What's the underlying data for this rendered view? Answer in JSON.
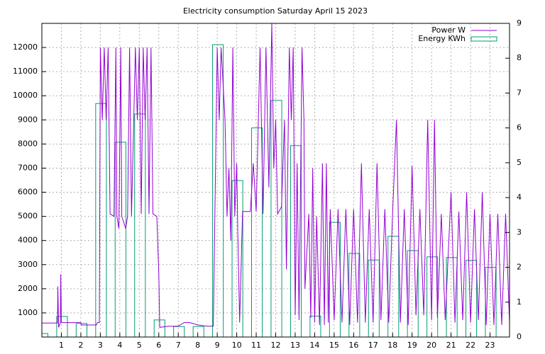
{
  "chart_data": {
    "type": "line",
    "title": "Electricity consumption Saturday April 15 2023",
    "xlim": [
      0,
      24
    ],
    "xticks": [
      1,
      2,
      3,
      4,
      5,
      6,
      7,
      8,
      9,
      10,
      11,
      12,
      13,
      14,
      15,
      16,
      17,
      18,
      19,
      20,
      21,
      22,
      23
    ],
    "ylim": [
      0,
      13000
    ],
    "yticks": [
      1000,
      2000,
      3000,
      4000,
      5000,
      6000,
      7000,
      8000,
      9000,
      10000,
      11000,
      12000
    ],
    "y2lim": [
      0,
      9
    ],
    "y2ticks": [
      0,
      1,
      2,
      3,
      4,
      5,
      6,
      7,
      8,
      9
    ],
    "grid": true,
    "legend": "top-right",
    "series": [
      {
        "name": "Power W",
        "type": "line",
        "color": "#9400d3",
        "x": [
          0,
          0.8,
          0.82,
          0.86,
          0.95,
          0.97,
          1.0,
          2.0,
          2.02,
          2.8,
          2.85,
          2.95,
          3.0,
          3.1,
          3.2,
          3.3,
          3.4,
          3.5,
          3.7,
          3.8,
          3.85,
          3.95,
          4.05,
          4.1,
          4.3,
          4.4,
          4.5,
          4.6,
          4.8,
          4.9,
          5.0,
          5.1,
          5.2,
          5.3,
          5.4,
          5.5,
          5.6,
          5.7,
          5.9,
          6.0,
          6.05,
          6.5,
          7.0,
          7.3,
          7.6,
          8.0,
          8.5,
          8.8,
          9.0,
          9.1,
          9.2,
          9.4,
          9.5,
          9.6,
          9.7,
          9.8,
          9.9,
          10.0,
          10.05,
          10.15,
          10.3,
          10.7,
          10.85,
          11.0,
          11.2,
          11.35,
          11.5,
          11.65,
          11.8,
          11.9,
          12.0,
          12.1,
          12.3,
          12.45,
          12.55,
          12.7,
          12.8,
          12.9,
          13.0,
          13.1,
          13.2,
          13.35,
          13.45,
          13.5,
          13.7,
          13.8,
          13.9,
          14.0,
          14.1,
          14.25,
          14.4,
          14.5,
          14.6,
          14.7,
          14.8,
          15.0,
          15.2,
          15.4,
          15.6,
          15.8,
          16.0,
          16.2,
          16.4,
          16.6,
          16.8,
          17.0,
          17.2,
          17.4,
          17.6,
          17.8,
          18.0,
          18.2,
          18.4,
          18.6,
          18.8,
          19.0,
          19.2,
          19.4,
          19.6,
          19.8,
          20.0,
          20.15,
          20.3,
          20.5,
          20.7,
          21.0,
          21.2,
          21.4,
          21.6,
          21.8,
          22.0,
          22.2,
          22.4,
          22.6,
          22.8,
          23.0,
          23.2,
          23.4,
          23.6,
          23.8,
          24.0
        ],
        "values": [
          580,
          580,
          2100,
          400,
          600,
          2600,
          600,
          600,
          500,
          500,
          600,
          600,
          12000,
          9000,
          12000,
          9000,
          12000,
          5100,
          5000,
          12000,
          5000,
          4500,
          12000,
          5000,
          4500,
          5000,
          12000,
          5000,
          12000,
          9000,
          12000,
          5100,
          12000,
          9000,
          12000,
          5100,
          12000,
          5100,
          5000,
          2600,
          400,
          450,
          450,
          600,
          600,
          500,
          450,
          450,
          12000,
          9000,
          12000,
          9000,
          5000,
          7000,
          4000,
          12000,
          5000,
          7200,
          4500,
          600,
          5200,
          5200,
          7200,
          5200,
          12000,
          5100,
          12000,
          6200,
          13000,
          7000,
          9000,
          5100,
          5400,
          9000,
          2800,
          12000,
          9000,
          12000,
          900,
          7200,
          700,
          12000,
          9000,
          2000,
          5100,
          800,
          7000,
          600,
          5000,
          500,
          7200,
          500,
          7200,
          600,
          5300,
          700,
          5300,
          600,
          5300,
          500,
          5300,
          600,
          7200,
          600,
          5300,
          600,
          7200,
          700,
          5300,
          600,
          5200,
          9000,
          600,
          5300,
          500,
          7100,
          900,
          5300,
          900,
          9000,
          700,
          9000,
          800,
          5100,
          700,
          6000,
          600,
          5200,
          700,
          6000,
          600,
          5300,
          700,
          6000,
          500,
          5100,
          500,
          5100,
          500,
          5100,
          600
        ]
      },
      {
        "name": "Energy KWh",
        "type": "bar",
        "axis": "y2",
        "color": "#009e73",
        "x": [
          0,
          1,
          2,
          3,
          4,
          5,
          6,
          7,
          8,
          9,
          10,
          11,
          12,
          13,
          14,
          15,
          16,
          17,
          18,
          19,
          20,
          21,
          22,
          23
        ],
        "values": [
          0.1,
          0.59,
          0.39,
          6.7,
          5.59,
          6.4,
          0.49,
          0.3,
          0.3,
          8.39,
          4.49,
          6.0,
          6.79,
          5.49,
          0.6,
          3.29,
          2.4,
          2.21,
          2.89,
          2.48,
          2.3,
          2.28,
          2.2,
          2.0
        ]
      }
    ]
  }
}
